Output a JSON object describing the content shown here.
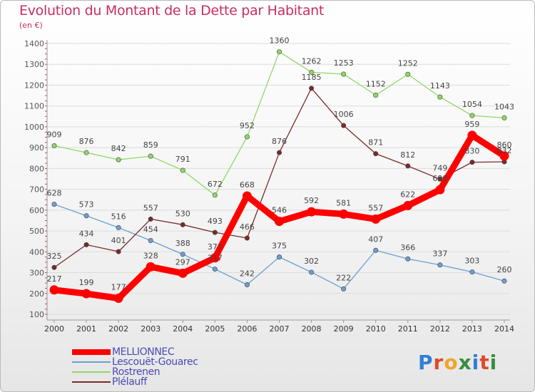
{
  "title": "Evolution du Montant de la Dette par Habitant",
  "unit": "(en €)",
  "logo": {
    "text": "Proxiti",
    "letter_colors": [
      "#2f7fd4",
      "#e0492b",
      "#f1a527",
      "#3a8d3e",
      "#2f7fd4",
      "#e0492b",
      "#3a8d3e"
    ]
  },
  "chart_data": {
    "type": "line",
    "title": "Evolution du Montant de la Dette par Habitant",
    "ylabel": "(en €)",
    "xlabel": "",
    "x": [
      "2000",
      "2001",
      "2002",
      "2003",
      "2004",
      "2005",
      "2006",
      "2007",
      "2008",
      "2009",
      "2010",
      "2011",
      "2012",
      "2013",
      "2014"
    ],
    "ylim": [
      100,
      1400
    ],
    "yticks": [
      "100",
      "200",
      "300",
      "400",
      "500",
      "600",
      "700",
      "800",
      "900",
      "1000",
      "1100",
      "1200",
      "1300",
      "1400"
    ],
    "grid": "horizontal",
    "legend_position": "bottom-left",
    "series": [
      {
        "name": "Rostrenen",
        "color": "#8fd866",
        "values": [
          909,
          876,
          842,
          859,
          791,
          672,
          952,
          1360,
          1262,
          1253,
          1152,
          1252,
          1143,
          1054,
          1043
        ],
        "labels": [
          "909",
          "876",
          "842",
          "859",
          "791",
          "672",
          "952",
          "1360",
          "1262",
          "1253",
          "1152",
          "1252",
          "1143",
          "1054",
          "1043"
        ]
      },
      {
        "name": "Lescouët-Gouarec",
        "color": "#6b9fd2",
        "values": [
          628,
          573,
          516,
          454,
          388,
          317,
          242,
          375,
          302,
          222,
          407,
          366,
          337,
          303,
          260
        ],
        "labels": [
          "628",
          "573",
          "516",
          "454",
          "388",
          "317",
          "242",
          "375",
          "302",
          "222",
          "407",
          "366",
          "337",
          "303",
          "260"
        ]
      },
      {
        "name": "Plélauff",
        "color": "#7a2a2a",
        "values": [
          325,
          434,
          401,
          557,
          530,
          493,
          466,
          876,
          1185,
          1006,
          871,
          812,
          749,
          830,
          832
        ],
        "labels": [
          "325",
          "434",
          "401",
          "557",
          "530",
          "493",
          "466",
          "876",
          "1185",
          "1006",
          "871",
          "812",
          "749",
          "830",
          "832"
        ]
      },
      {
        "name": "MELLIONNEC",
        "color": "#ff0000",
        "values": [
          217,
          199,
          177,
          328,
          297,
          371,
          668,
          546,
          592,
          581,
          557,
          622,
          698,
          959,
          860
        ],
        "labels": [
          "217",
          "199",
          "177",
          "328",
          "297",
          "371",
          "668",
          "546",
          "592",
          "581",
          "557",
          "622",
          "698",
          "959",
          "860"
        ]
      }
    ],
    "legend": [
      "MELLIONNEC",
      "Lescouët-Gouarec",
      "Rostrenen",
      "Plélauff"
    ]
  }
}
